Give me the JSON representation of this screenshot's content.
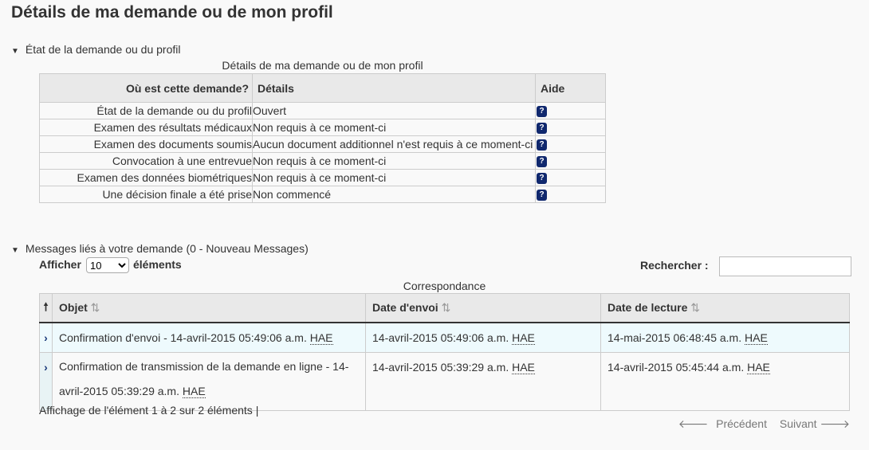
{
  "title": "Détails de ma demande ou de mon profil",
  "status_section": {
    "label": "État de la demande ou du profil",
    "caption": "Détails de ma demande ou de mon profil",
    "headers": [
      "Où est cette demande?",
      "Détails",
      "Aide"
    ],
    "rows": [
      {
        "key": "État de la demande ou du profil",
        "value": "Ouvert"
      },
      {
        "key": "Examen des résultats médicaux",
        "value": "Non requis à ce moment-ci"
      },
      {
        "key": "Examen des documents soumis",
        "value": "Aucun document additionnel n'est requis à ce moment-ci"
      },
      {
        "key": "Convocation à une entrevue",
        "value": "Non requis à ce moment-ci"
      },
      {
        "key": "Examen des données biométriques",
        "value": "Non requis à ce moment-ci"
      },
      {
        "key": "Une décision finale a été prise",
        "value": "Non commencé"
      }
    ],
    "help_icon": "?"
  },
  "messages": {
    "label": "Messages liés à votre demande (0 - Nouveau Messages)",
    "show_label": "Afficher",
    "show_value": "10",
    "show_suffix": "éléments",
    "search_label": "Rechercher :",
    "search_value": "",
    "caption": "Correspondance",
    "headers": [
      "Objet",
      "Date d'envoi",
      "Date de lecture"
    ],
    "rows": [
      {
        "subject": "Confirmation d'envoi - 14-avril-2015  05:49:06 a.m.",
        "sent": "14-avril-2015  05:49:06 a.m.",
        "read": "14-mai-2015  06:48:45 a.m."
      },
      {
        "subject": "Confirmation de transmission de la demande en ligne - 14-avril-2015  05:39:29 a.m.",
        "sent": "14-avril-2015  05:39:29 a.m.",
        "read": "14-avril-2015  05:45:44 a.m."
      }
    ],
    "tz": "HAE",
    "info": "Affichage de l'élément 1 à 2 sur 2 éléments",
    "prev": "Précédent",
    "next": "Suivant"
  },
  "colors": {
    "help": "#10286e",
    "row_highlight": "#eefafd"
  }
}
